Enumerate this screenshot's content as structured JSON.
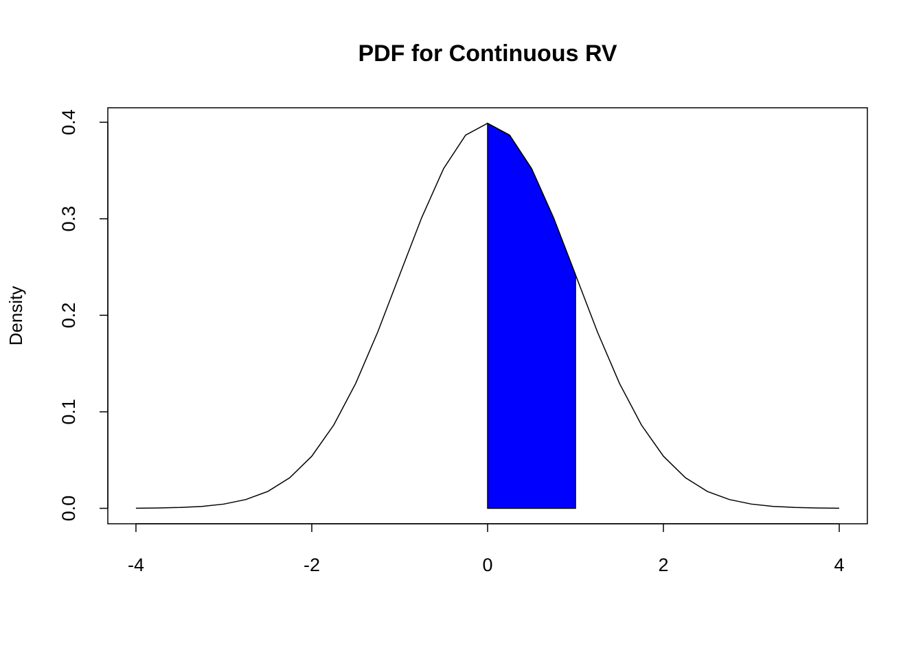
{
  "chart_data": {
    "type": "line",
    "title": "PDF for Continuous RV",
    "ylabel": "Density",
    "xlim": [
      -4.32,
      4.32
    ],
    "ylim": [
      -0.016,
      0.415
    ],
    "xticks": [
      -4,
      -2,
      0,
      2,
      4
    ],
    "yticks": [
      {
        "value": 0,
        "label": "0.0"
      },
      0.1,
      0.2,
      0.3,
      0.4
    ],
    "series": [
      {
        "color": "#0000ff",
        "fill": true,
        "x": [
          0,
          0.25,
          0.5,
          0.75,
          1
        ],
        "values": [
          0.3989,
          0.3867,
          0.3521,
          0.3011,
          0.242
        ]
      },
      {
        "color": "#000000",
        "fill": false,
        "x": [
          -4,
          -3.75,
          -3.5,
          -3.25,
          -3,
          -2.75,
          -2.5,
          -2.25,
          -2,
          -1.75,
          -1.5,
          -1.25,
          -1,
          -0.75,
          -0.5,
          -0.25,
          0,
          0.25,
          0.5,
          0.75,
          1,
          1.25,
          1.5,
          1.75,
          2,
          2.25,
          2.5,
          2.75,
          3,
          3.25,
          3.5,
          3.75,
          4
        ],
        "values": [
          0.0001,
          0.0004,
          0.0009,
          0.002,
          0.0044,
          0.0091,
          0.0175,
          0.0317,
          0.054,
          0.0863,
          0.1295,
          0.1826,
          0.242,
          0.3011,
          0.3521,
          0.3867,
          0.3989,
          0.3867,
          0.3521,
          0.3011,
          0.242,
          0.1826,
          0.1295,
          0.0863,
          0.054,
          0.0317,
          0.0175,
          0.0091,
          0.0044,
          0.002,
          0.0009,
          0.0004,
          0.0001
        ]
      }
    ]
  }
}
